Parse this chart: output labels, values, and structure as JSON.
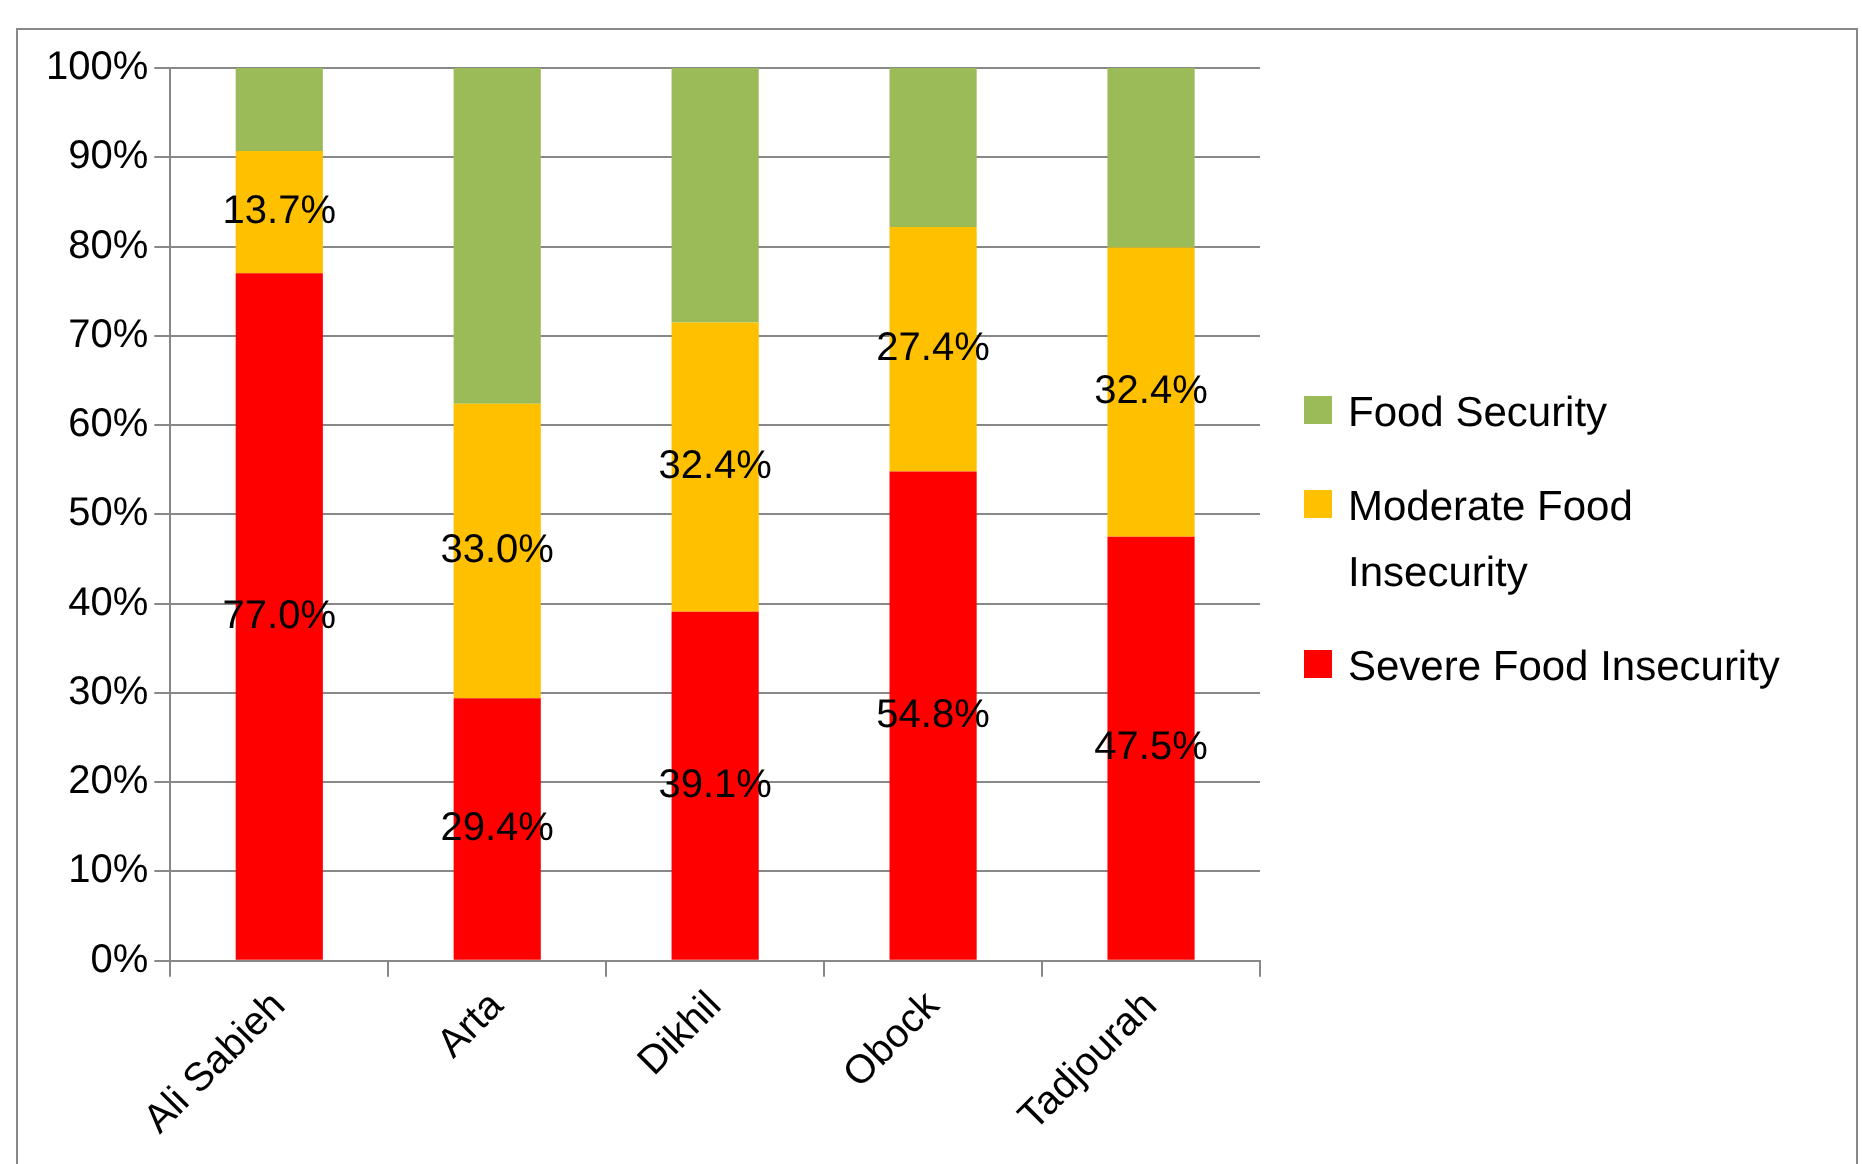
{
  "chart_data": {
    "type": "bar",
    "stacked": true,
    "categories": [
      "Ali Sabieh",
      "Arta",
      "Dikhil",
      "Obock",
      "Tadjourah"
    ],
    "series": [
      {
        "name": "Severe Food Insecurity",
        "color": "#ff0000",
        "values": [
          77.0,
          29.4,
          39.1,
          54.8,
          47.5
        ],
        "value_labels": [
          "77.0%",
          "29.4%",
          "39.1%",
          "54.8%",
          "47.5%"
        ]
      },
      {
        "name": "Moderate Food Insecurity",
        "color": "#ffc000",
        "values": [
          13.7,
          33.0,
          32.4,
          27.4,
          32.4
        ],
        "value_labels": [
          "13.7%",
          "33.0%",
          "32.4%",
          "27.4%",
          "32.4%"
        ]
      },
      {
        "name": "Food Security",
        "color": "#9bbb59",
        "values": [
          9.3,
          37.6,
          28.5,
          17.8,
          20.1
        ]
      }
    ],
    "ylim": [
      0,
      100
    ],
    "yticks": [
      {
        "value": 0,
        "label": "0%"
      },
      {
        "value": 10,
        "label": "10%"
      },
      {
        "value": 20,
        "label": "20%"
      },
      {
        "value": 30,
        "label": "30%"
      },
      {
        "value": 40,
        "label": "40%"
      },
      {
        "value": 50,
        "label": "50%"
      },
      {
        "value": 60,
        "label": "60%"
      },
      {
        "value": 70,
        "label": "70%"
      },
      {
        "value": 80,
        "label": "80%"
      },
      {
        "value": 90,
        "label": "90%"
      },
      {
        "value": 100,
        "label": "100%"
      }
    ],
    "grid": "y",
    "legend": "right"
  }
}
